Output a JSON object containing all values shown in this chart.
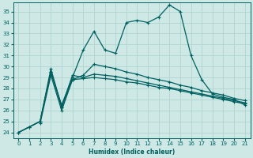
{
  "xlabel": "Humidex (Indice chaleur)",
  "bg_color": "#cde8e5",
  "grid_color": "#b0d4d0",
  "line_color": "#006060",
  "xlim": [
    -0.5,
    21.5
  ],
  "ylim": [
    23.5,
    35.8
  ],
  "yticks": [
    24,
    25,
    26,
    27,
    28,
    29,
    30,
    31,
    32,
    33,
    34,
    35
  ],
  "xticks": [
    0,
    1,
    2,
    3,
    4,
    5,
    6,
    7,
    8,
    9,
    10,
    11,
    12,
    13,
    14,
    15,
    16,
    17,
    18,
    19,
    20,
    21
  ],
  "series": [
    {
      "x": [
        0,
        1,
        2,
        3,
        4,
        5,
        6,
        7,
        8,
        9,
        10,
        11,
        12,
        13,
        14,
        15,
        16,
        17,
        18,
        19,
        20,
        21
      ],
      "y": [
        24.0,
        24.5,
        25.0,
        29.5,
        26.5,
        29.0,
        31.5,
        33.2,
        31.5,
        31.2,
        34.0,
        34.2,
        34.0,
        34.5,
        35.6,
        35.0,
        31.0,
        28.8,
        27.5,
        27.2,
        27.0,
        26.5
      ],
      "linestyle": "-",
      "linewidth": 0.9
    },
    {
      "x": [
        0,
        1,
        2,
        3,
        4,
        5,
        6,
        7,
        8,
        9,
        10,
        11,
        12,
        13,
        14,
        15,
        16,
        17,
        18,
        19,
        20,
        21
      ],
      "y": [
        24.0,
        24.5,
        25.0,
        29.8,
        26.3,
        29.2,
        29.0,
        29.3,
        29.2,
        29.1,
        28.9,
        28.7,
        28.5,
        28.3,
        28.1,
        27.9,
        27.7,
        27.5,
        27.3,
        27.1,
        26.9,
        26.7
      ],
      "linestyle": "-",
      "linewidth": 0.9
    },
    {
      "x": [
        2,
        3,
        4,
        5,
        6,
        7,
        8,
        9,
        10,
        11,
        12,
        13,
        14,
        15,
        16,
        17,
        18,
        19,
        20,
        21
      ],
      "y": [
        24.8,
        29.2,
        26.0,
        28.8,
        28.9,
        29.0,
        28.9,
        28.8,
        28.6,
        28.5,
        28.3,
        28.1,
        28.0,
        27.8,
        27.6,
        27.4,
        27.2,
        27.0,
        26.8,
        26.6
      ],
      "linestyle": "-",
      "linewidth": 0.9
    },
    {
      "x": [
        0,
        1,
        2,
        3,
        4,
        5,
        6,
        7,
        8,
        9,
        10,
        11,
        12,
        13,
        14,
        15,
        16,
        17,
        18,
        19,
        20,
        21
      ],
      "y": [
        24.0,
        24.5,
        25.0,
        29.5,
        26.3,
        28.8,
        29.2,
        30.2,
        30.0,
        29.8,
        29.5,
        29.3,
        29.0,
        28.8,
        28.6,
        28.3,
        28.1,
        27.8,
        27.6,
        27.4,
        27.1,
        26.9
      ],
      "linestyle": "-",
      "linewidth": 0.9
    }
  ]
}
